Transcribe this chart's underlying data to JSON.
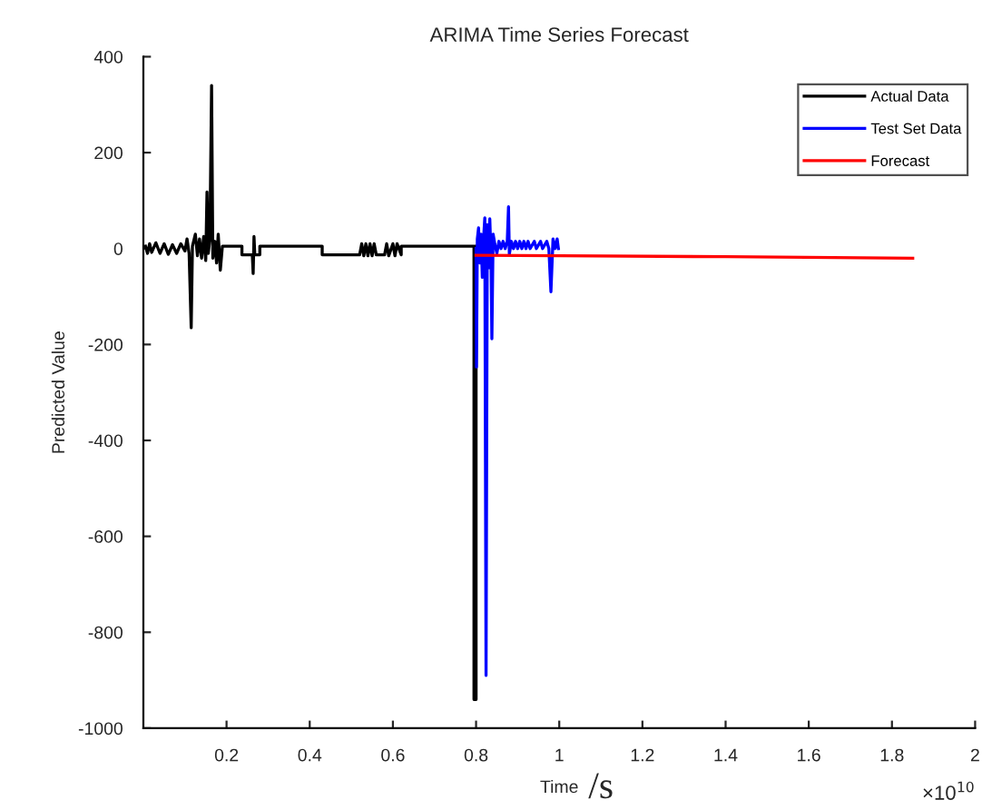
{
  "chart_data": {
    "type": "line",
    "title": "ARIMA Time Series Forecast",
    "xlabel": "Time",
    "ylabel": "Predicted Value",
    "annotations": [
      "/s",
      "×10$^{10}$"
    ],
    "xlim": [
      0,
      2
    ],
    "xticks": [
      0.2,
      0.4,
      0.6,
      0.8,
      1,
      1.2,
      1.4,
      1.6,
      1.8,
      2
    ],
    "ylim": [
      -1000,
      400
    ],
    "yticks": [
      -1000,
      -800,
      -600,
      -400,
      -200,
      0,
      200,
      400
    ],
    "grid": false,
    "legend": "top right",
    "marker": "none",
    "line_style": "solid",
    "series": [
      {
        "name": "Actual Data",
        "color": "#000000",
        "x": [
          0.005,
          0.01,
          0.015,
          0.02,
          0.03,
          0.04,
          0.05,
          0.06,
          0.07,
          0.08,
          0.09,
          0.1,
          0.105,
          0.11,
          0.115,
          0.118,
          0.125,
          0.13,
          0.135,
          0.14,
          0.145,
          0.15,
          0.153,
          0.156,
          0.16,
          0.164,
          0.167,
          0.172,
          0.176,
          0.18,
          0.185,
          0.19,
          0.237,
          0.237,
          0.262,
          0.264,
          0.266,
          0.268,
          0.28,
          0.28,
          0.43,
          0.43,
          0.52,
          0.525,
          0.53,
          0.535,
          0.54,
          0.545,
          0.55,
          0.555,
          0.56,
          0.58,
          0.585,
          0.59,
          0.6,
          0.605,
          0.61,
          0.62,
          0.62,
          0.795,
          0.795,
          0.8,
          0.8
        ],
        "values": [
          5,
          -10,
          10,
          -8,
          12,
          -10,
          10,
          -12,
          8,
          -10,
          10,
          -5,
          20,
          -10,
          -165,
          5,
          30,
          -15,
          20,
          -20,
          25,
          -25,
          118,
          -10,
          20,
          340,
          -20,
          15,
          -30,
          30,
          -45,
          5,
          5,
          -13,
          -13,
          -52,
          25,
          -13,
          -13,
          5,
          5,
          -13,
          -13,
          10,
          -15,
          10,
          -15,
          10,
          -15,
          10,
          -13,
          -13,
          10,
          -15,
          10,
          -15,
          10,
          -13,
          5,
          5,
          -940,
          -940,
          5
        ]
      },
      {
        "name": "Test Set Data",
        "color": "#0000ff",
        "x": [
          0.8,
          0.801,
          0.803,
          0.806,
          0.809,
          0.812,
          0.815,
          0.818,
          0.821,
          0.824,
          0.827,
          0.83,
          0.833,
          0.836,
          0.838,
          0.841,
          0.845,
          0.85,
          0.855,
          0.86,
          0.865,
          0.87,
          0.875,
          0.878,
          0.88,
          0.885,
          0.89,
          0.895,
          0.9,
          0.905,
          0.91,
          0.915,
          0.92,
          0.925,
          0.93,
          0.94,
          0.945,
          0.955,
          0.96,
          0.97,
          0.975,
          0.98,
          0.985,
          0.99,
          0.995,
          0.998
        ],
        "values": [
          0,
          -247,
          20,
          43,
          -30,
          30,
          -60,
          20,
          64,
          -890,
          50,
          -40,
          62,
          -20,
          -188,
          30,
          10,
          -10,
          15,
          0,
          15,
          0,
          15,
          87,
          -12,
          15,
          0,
          15,
          0,
          15,
          0,
          15,
          0,
          15,
          0,
          15,
          0,
          15,
          0,
          15,
          0,
          -90,
          20,
          0,
          20,
          0
        ]
      },
      {
        "name": "Forecast",
        "color": "#ff0000",
        "x": [
          0.8,
          1.0,
          1.4,
          1.85
        ],
        "values": [
          -14,
          -15,
          -17,
          -20
        ]
      }
    ]
  }
}
